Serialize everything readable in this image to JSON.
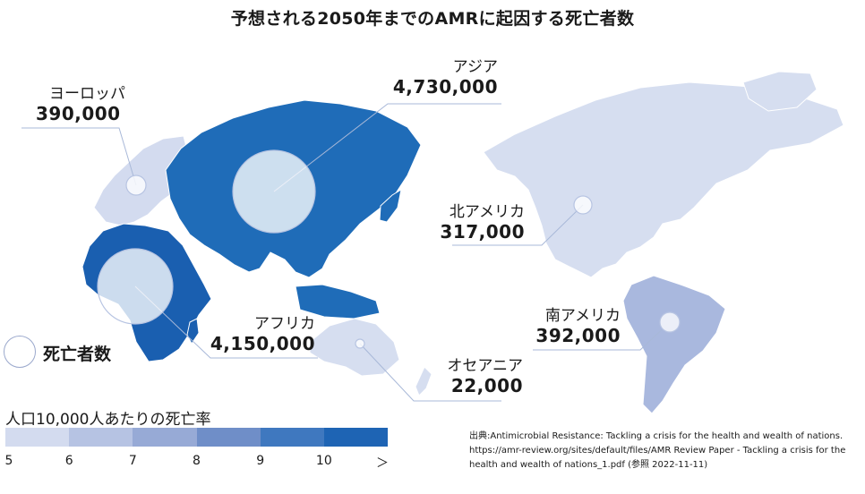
{
  "title": "予想される2050年までのAMRに起因する死亡者数",
  "regions": {
    "europe": {
      "name": "ヨーロッパ",
      "value": "390,000"
    },
    "asia": {
      "name": "アジア",
      "value": "4,730,000"
    },
    "north_america": {
      "name": "北アメリカ",
      "value": "317,000"
    },
    "africa": {
      "name": "アフリカ",
      "value": "4,150,000"
    },
    "south_america": {
      "name": "南アメリカ",
      "value": "392,000"
    },
    "oceania": {
      "name": "オセアニア",
      "value": "22,000"
    }
  },
  "legend": {
    "bubble_label": "死亡者数",
    "scale_title": "人口10,000人あたりの死亡率",
    "scale_ticks": [
      "5",
      "6",
      "7",
      "8",
      "9",
      "10",
      "＞"
    ],
    "scale_colors": [
      "#d3dbef",
      "#b6c3e3",
      "#97aad6",
      "#6f8ec8",
      "#3f78bf",
      "#1e64b4"
    ]
  },
  "source": "出典:Antimicrobial Resistance: Tackling a crisis for the health and wealth of nations. https://amr-review.org/sites/default/files/AMR Review Paper - Tackling a crisis for the health and wealth of nations_1.pdf (参照 2022-11-11)",
  "colors": {
    "asia": "#1f6cb8",
    "africa": "#1a5fb0",
    "europe": "#d3dbef",
    "north_america": "#d6def0",
    "south_america": "#a9b8de",
    "oceania": "#d6def0",
    "leader_line": "#a8b8d8"
  }
}
